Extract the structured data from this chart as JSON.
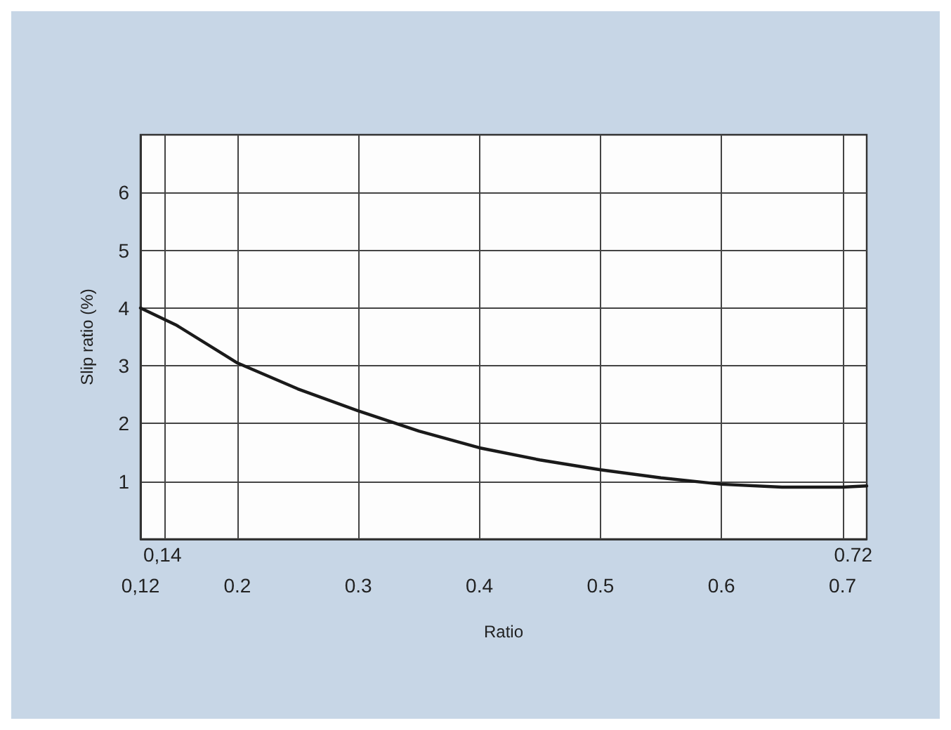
{
  "chart_data": {
    "type": "line",
    "xlabel": "Ratio",
    "ylabel": "Slip ratio (%)",
    "x": [
      0.12,
      0.15,
      0.2,
      0.25,
      0.3,
      0.35,
      0.4,
      0.45,
      0.5,
      0.55,
      0.6,
      0.65,
      0.7,
      0.72
    ],
    "series": [
      {
        "color": "#1a1a1a",
        "values": [
          4.0,
          3.7,
          3.05,
          2.6,
          2.22,
          1.87,
          1.58,
          1.37,
          1.2,
          1.06,
          0.95,
          0.9,
          0.9,
          0.92
        ]
      }
    ],
    "xlim": [
      0.12,
      0.72
    ],
    "xticks": [
      {
        "value": 0.12,
        "label": "0,12"
      },
      {
        "value": 0.14,
        "label": null
      },
      0.2,
      0.3,
      0.4,
      0.5,
      0.6,
      0.7
    ],
    "annotations": [
      "0,14",
      "0.72"
    ],
    "ylim": [
      0,
      7
    ],
    "yticks": [
      1,
      2,
      3,
      4,
      5,
      6
    ],
    "grid": true,
    "marker": "none",
    "line_style": "solid"
  }
}
